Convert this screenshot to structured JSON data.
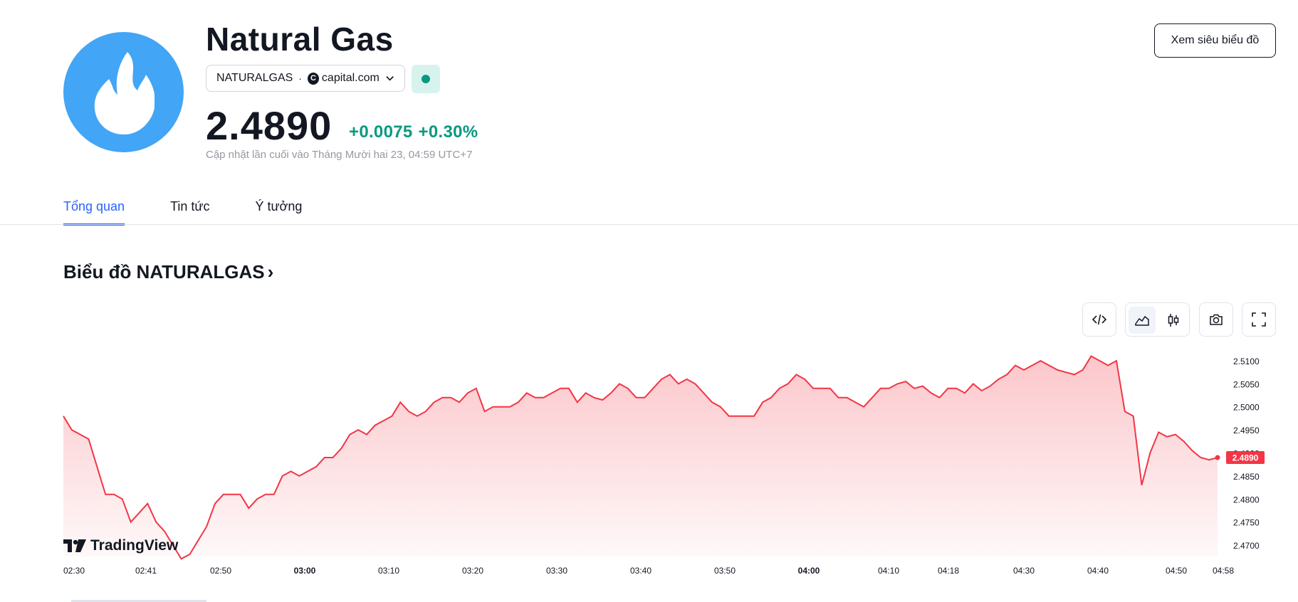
{
  "header": {
    "title": "Natural Gas",
    "logo_icon": "flame-icon",
    "symbol": "NATURALGAS",
    "separator": "·",
    "exchange_icon_letter": "C",
    "exchange": "capital.com",
    "price": "2.4890",
    "change_abs": "+0.0075",
    "change_pct": "+0.30%",
    "updated": "Cập nhật lần cuối vào Tháng Mười hai 23, 04:59 UTC+7",
    "super_chart_label": "Xem siêu biểu đồ",
    "market_status_color": "#089981"
  },
  "tabs": [
    {
      "label": "Tổng quan",
      "active": true
    },
    {
      "label": "Tin tức",
      "active": false
    },
    {
      "label": "Ý tưởng",
      "active": false
    }
  ],
  "chart_section": {
    "heading": "Biểu đồ NATURALGAS",
    "heading_arrow": "›",
    "toolbar": [
      "embed-code-icon",
      "area-chart-icon",
      "candlestick-icon",
      "camera-icon",
      "fullscreen-icon"
    ],
    "branding": "TradingView"
  },
  "chart_data": {
    "type": "area",
    "color": "#f23645",
    "last_value_label": "2.4890",
    "y_ticks": [
      "2.5100",
      "2.5050",
      "2.5000",
      "2.4950",
      "2.4900",
      "2.4850",
      "2.4800",
      "2.4750",
      "2.4700"
    ],
    "x_ticks": [
      {
        "label": "02:30",
        "bold": false
      },
      {
        "label": "02:41",
        "bold": false
      },
      {
        "label": "02:50",
        "bold": false
      },
      {
        "label": "03:00",
        "bold": true
      },
      {
        "label": "03:10",
        "bold": false
      },
      {
        "label": "03:20",
        "bold": false
      },
      {
        "label": "03:30",
        "bold": false
      },
      {
        "label": "03:40",
        "bold": false
      },
      {
        "label": "03:50",
        "bold": false
      },
      {
        "label": "04:00",
        "bold": true
      },
      {
        "label": "04:10",
        "bold": false
      },
      {
        "label": "04:18",
        "bold": false
      },
      {
        "label": "04:30",
        "bold": false
      },
      {
        "label": "04:40",
        "bold": false
      },
      {
        "label": "04:50",
        "bold": false
      },
      {
        "label": "04:58",
        "bold": false
      }
    ],
    "values": [
      2.498,
      2.495,
      2.494,
      2.493,
      2.487,
      2.481,
      2.481,
      2.48,
      2.475,
      2.477,
      2.479,
      2.475,
      2.473,
      2.47,
      2.467,
      2.468,
      2.471,
      2.474,
      2.479,
      2.481,
      2.481,
      2.481,
      2.478,
      2.48,
      2.481,
      2.481,
      2.485,
      2.486,
      2.485,
      2.486,
      2.487,
      2.489,
      2.489,
      2.491,
      2.494,
      2.495,
      2.494,
      2.496,
      2.497,
      2.498,
      2.501,
      2.499,
      2.498,
      2.499,
      2.501,
      2.502,
      2.502,
      2.501,
      2.503,
      2.504,
      2.499,
      2.5,
      2.5,
      2.5,
      2.501,
      2.503,
      2.502,
      2.502,
      2.503,
      2.504,
      2.504,
      2.501,
      2.503,
      2.502,
      2.5015,
      2.503,
      2.505,
      2.504,
      2.502,
      2.502,
      2.504,
      2.506,
      2.507,
      2.505,
      2.506,
      2.505,
      2.503,
      2.501,
      2.5,
      2.498,
      2.498,
      2.498,
      2.498,
      2.501,
      2.502,
      2.504,
      2.505,
      2.507,
      2.506,
      2.504,
      2.504,
      2.504,
      2.502,
      2.502,
      2.501,
      2.5,
      2.502,
      2.504,
      2.504,
      2.505,
      2.5055,
      2.504,
      2.5045,
      2.503,
      2.502,
      2.504,
      2.504,
      2.503,
      2.505,
      2.5035,
      2.5045,
      2.506,
      2.507,
      2.509,
      2.508,
      2.509,
      2.51,
      2.509,
      2.508,
      2.5075,
      2.507,
      2.508,
      2.511,
      2.51,
      2.509,
      2.51,
      2.499,
      2.498,
      2.483,
      2.49,
      2.4945,
      2.4935,
      2.494,
      2.4925,
      2.4905,
      2.489,
      2.4885,
      2.489
    ]
  }
}
